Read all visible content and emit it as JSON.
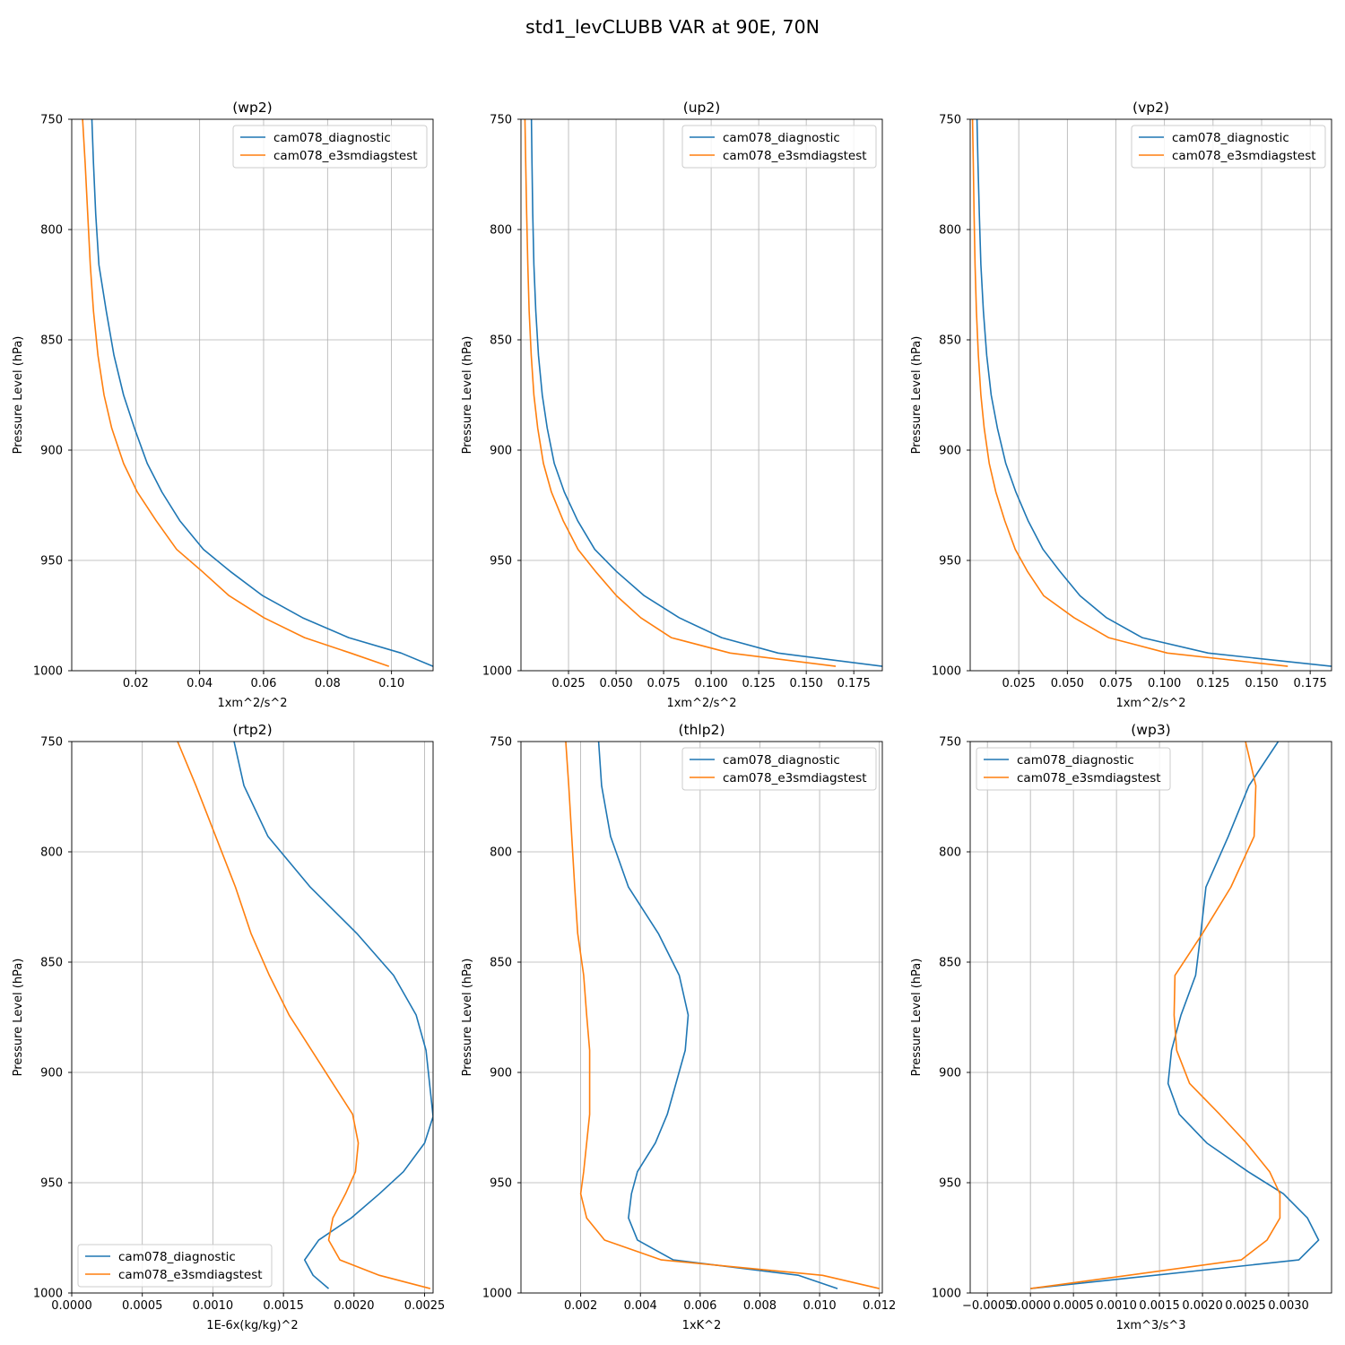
{
  "suptitle": "std1_levCLUBB VAR at 90E, 70N",
  "colors": {
    "diagnostic": "#1f77b4",
    "e3smdiagstest": "#ff7f0e",
    "grid": "#b0b0b0"
  },
  "chart_data": [
    {
      "type": "line",
      "title": "(wp2)",
      "xlabel": "1xm^2/s^2",
      "ylabel": "Pressure Level (hPa)",
      "xlim": [
        0.0,
        0.113
      ],
      "ylim": [
        1000,
        750
      ],
      "xticks": [
        0.02,
        0.04,
        0.06,
        0.08
      ],
      "xtick_labels": [
        "0.02",
        "0.04",
        "0.06",
        "0.08"
      ],
      "xticks_extra_label": "0.10",
      "xticks_extra": 0.1,
      "yticks": [
        750,
        800,
        850,
        900,
        950,
        1000
      ],
      "legend": "upper right",
      "series": [
        {
          "name": "cam078_diagnostic",
          "color": "diagnostic",
          "x": [
            0.0063,
            0.0068,
            0.0075,
            0.0085,
            0.0108,
            0.0132,
            0.0162,
            0.0196,
            0.0236,
            0.0282,
            0.0338,
            0.0412,
            0.0496,
            0.0597,
            0.0722,
            0.0866,
            0.103,
            0.113
          ],
          "y": [
            750,
            770,
            793,
            816,
            837,
            857,
            875,
            890,
            906,
            919,
            932,
            945,
            955,
            966,
            976,
            985,
            992,
            998
          ]
        },
        {
          "name": "cam078_e3smdiagstest",
          "color": "e3smdiagstest",
          "x": [
            0.0034,
            0.0042,
            0.005,
            0.0058,
            0.0068,
            0.0082,
            0.0101,
            0.0125,
            0.0162,
            0.0205,
            0.0264,
            0.0328,
            0.0408,
            0.0492,
            0.0601,
            0.0728,
            0.0872,
            0.0992
          ],
          "y": [
            750,
            770,
            793,
            816,
            837,
            857,
            875,
            890,
            906,
            919,
            932,
            945,
            955,
            966,
            976,
            985,
            992,
            998
          ]
        }
      ]
    },
    {
      "type": "line",
      "title": "(up2)",
      "xlabel": "1xm^2/s^2",
      "ylabel": "Pressure Level (hPa)",
      "xlim": [
        0.0,
        0.19
      ],
      "ylim": [
        1000,
        750
      ],
      "xticks": [
        0.025,
        0.05,
        0.075,
        0.1,
        0.125,
        0.15,
        0.175
      ],
      "xtick_labels": [
        "0.025",
        "0.050",
        "0.075",
        "0.100",
        "0.125",
        "0.150",
        "0.175"
      ],
      "yticks": [
        750,
        800,
        850,
        900,
        950,
        1000
      ],
      "legend": "upper right",
      "series": [
        {
          "name": "cam078_diagnostic",
          "color": "diagnostic",
          "x": [
            0.0055,
            0.0058,
            0.0062,
            0.0068,
            0.0078,
            0.0092,
            0.0112,
            0.0138,
            0.0175,
            0.0228,
            0.0298,
            0.0388,
            0.0502,
            0.0648,
            0.0832,
            0.1055,
            0.1352,
            0.19
          ],
          "y": [
            750,
            770,
            793,
            816,
            837,
            857,
            875,
            890,
            906,
            919,
            932,
            945,
            955,
            966,
            976,
            985,
            992,
            998
          ]
        },
        {
          "name": "cam078_e3smdiagstest",
          "color": "e3smdiagstest",
          "x": [
            0.0021,
            0.0025,
            0.003,
            0.0036,
            0.0043,
            0.0054,
            0.0068,
            0.0088,
            0.0118,
            0.016,
            0.0222,
            0.03,
            0.0392,
            0.0502,
            0.063,
            0.079,
            0.11,
            0.1655
          ],
          "y": [
            750,
            770,
            793,
            816,
            837,
            857,
            875,
            890,
            906,
            919,
            932,
            945,
            955,
            966,
            976,
            985,
            992,
            998
          ]
        }
      ]
    },
    {
      "type": "line",
      "title": "(vp2)",
      "xlabel": "1xm^2/s^2",
      "ylabel": "Pressure Level (hPa)",
      "xlim": [
        0.0,
        0.186
      ],
      "ylim": [
        1000,
        750
      ],
      "xticks": [
        0.025,
        0.05,
        0.075,
        0.1,
        0.125,
        0.15,
        0.175
      ],
      "xtick_labels": [
        "0.025",
        "0.050",
        "0.075",
        "0.100",
        "0.125",
        "0.150",
        "0.175"
      ],
      "yticks": [
        750,
        800,
        850,
        900,
        950,
        1000
      ],
      "legend": "upper right",
      "series": [
        {
          "name": "cam078_diagnostic",
          "color": "diagnostic",
          "x": [
            0.0035,
            0.004,
            0.0047,
            0.0055,
            0.0068,
            0.0085,
            0.0108,
            0.014,
            0.0183,
            0.0235,
            0.0298,
            0.0375,
            0.0462,
            0.0565,
            0.0702,
            0.0885,
            0.1225,
            0.186
          ],
          "y": [
            750,
            770,
            793,
            816,
            837,
            857,
            875,
            890,
            906,
            919,
            932,
            945,
            955,
            966,
            976,
            985,
            992,
            998
          ]
        },
        {
          "name": "cam078_e3smdiagstest",
          "color": "e3smdiagstest",
          "x": [
            0.0012,
            0.0016,
            0.002,
            0.0025,
            0.0032,
            0.0042,
            0.0055,
            0.0072,
            0.0098,
            0.0132,
            0.0178,
            0.0232,
            0.0295,
            0.0378,
            0.0535,
            0.0712,
            0.1015,
            0.1635
          ],
          "y": [
            750,
            770,
            793,
            816,
            837,
            857,
            875,
            890,
            906,
            919,
            932,
            945,
            955,
            966,
            976,
            985,
            992,
            998
          ]
        }
      ]
    },
    {
      "type": "line",
      "title": "(rtp2)",
      "xlabel": "1E-6x(kg/kg)^2",
      "ylabel": "Pressure Level (hPa)",
      "xlim": [
        0.0,
        0.00256
      ],
      "ylim": [
        1000,
        750
      ],
      "xticks": [
        0.0,
        0.0005,
        0.001,
        0.0015,
        0.002,
        0.0025
      ],
      "xtick_labels": [
        "0.0000",
        "0.0005",
        "0.0010",
        "0.0015",
        "0.0020",
        "0.0025"
      ],
      "yticks": [
        750,
        800,
        850,
        900,
        950,
        1000
      ],
      "legend": "lower left",
      "series": [
        {
          "name": "cam078_diagnostic",
          "color": "diagnostic",
          "x": [
            0.00115,
            0.00122,
            0.00139,
            0.00169,
            0.00202,
            0.00228,
            0.00244,
            0.00251,
            0.00256,
            0.0025,
            0.00235,
            0.00218,
            0.00198,
            0.00175,
            0.00165,
            0.00171,
            0.00182
          ],
          "y": [
            750,
            770,
            793,
            816,
            837,
            856,
            874,
            890,
            920,
            932,
            945,
            955,
            966,
            976,
            985,
            992,
            998
          ]
        },
        {
          "name": "cam078_e3smdiagstest",
          "color": "e3smdiagstest",
          "x": [
            0.00075,
            0.00088,
            0.00102,
            0.00116,
            0.00127,
            0.0014,
            0.00154,
            0.0017,
            0.00186,
            0.00199,
            0.00203,
            0.00201,
            0.00194,
            0.00185,
            0.00182,
            0.0019,
            0.00218,
            0.00254
          ],
          "y": [
            750,
            770,
            793,
            816,
            837,
            856,
            874,
            890,
            906,
            919,
            932,
            945,
            955,
            966,
            976,
            985,
            992,
            998
          ]
        }
      ]
    },
    {
      "type": "line",
      "title": "(thlp2)",
      "xlabel": "1xK^2",
      "ylabel": "Pressure Level (hPa)",
      "xlim": [
        0.0,
        0.0121
      ],
      "ylim": [
        1000,
        750
      ],
      "xticks": [
        0.002,
        0.004,
        0.006,
        0.008,
        0.01,
        0.012
      ],
      "xtick_labels": [
        "0.002",
        "0.004",
        "0.006",
        "0.008",
        "0.010",
        "0.012"
      ],
      "yticks": [
        750,
        800,
        850,
        900,
        950,
        1000
      ],
      "legend": "upper right",
      "series": [
        {
          "name": "cam078_diagnostic",
          "color": "diagnostic",
          "x": [
            0.0026,
            0.0027,
            0.003,
            0.0036,
            0.0046,
            0.0053,
            0.0056,
            0.0055,
            0.0049,
            0.0045,
            0.0039,
            0.0037,
            0.0036,
            0.0039,
            0.0051,
            0.0093,
            0.0106
          ],
          "y": [
            750,
            770,
            793,
            816,
            837,
            856,
            874,
            890,
            919,
            932,
            945,
            955,
            966,
            976,
            985,
            992,
            998
          ]
        },
        {
          "name": "cam078_e3smdiagstest",
          "color": "e3smdiagstest",
          "x": [
            0.0015,
            0.0016,
            0.0017,
            0.0018,
            0.0019,
            0.0021,
            0.0022,
            0.0023,
            0.0023,
            0.0023,
            0.0022,
            0.0021,
            0.002,
            0.0022,
            0.0028,
            0.0047,
            0.0101,
            0.012
          ],
          "y": [
            750,
            770,
            793,
            816,
            837,
            856,
            874,
            890,
            906,
            919,
            932,
            945,
            955,
            966,
            976,
            985,
            992,
            998
          ]
        }
      ]
    },
    {
      "type": "line",
      "title": "(wp3)",
      "xlabel": "1xm^3/s^3",
      "ylabel": "Pressure Level (hPa)",
      "xlim": [
        -0.0007,
        0.0035
      ],
      "ylim": [
        1000,
        750
      ],
      "xticks": [
        -0.0005,
        0.0,
        0.0005,
        0.001,
        0.0015,
        0.002,
        0.0025,
        0.003
      ],
      "xtick_labels": [
        "−0.0005",
        "0.0000",
        "0.0005",
        "0.0010",
        "0.0015",
        "0.0020",
        "0.0025",
        "0.0030"
      ],
      "yticks": [
        750,
        800,
        850,
        900,
        950,
        1000
      ],
      "legend": "upper left",
      "series": [
        {
          "name": "cam078_diagnostic",
          "color": "diagnostic",
          "x": [
            0.00288,
            0.00254,
            0.0023,
            0.00204,
            0.00198,
            0.00192,
            0.00175,
            0.00164,
            0.0016,
            0.00173,
            0.00205,
            0.00253,
            0.00294,
            0.00322,
            0.00335,
            0.00312,
            0.0
          ],
          "y": [
            750,
            770,
            793,
            816,
            837,
            856,
            874,
            890,
            905,
            919,
            932,
            945,
            955,
            966,
            976,
            985,
            998
          ]
        },
        {
          "name": "cam078_e3smdiagstest",
          "color": "e3smdiagstest",
          "x": [
            0.0025,
            0.00262,
            0.0026,
            0.00233,
            0.002,
            0.00168,
            0.00167,
            0.0017,
            0.00185,
            0.0022,
            0.00251,
            0.00278,
            0.0029,
            0.0029,
            0.00275,
            0.00245,
            0.0
          ],
          "y": [
            750,
            770,
            793,
            816,
            837,
            856,
            874,
            890,
            905,
            919,
            932,
            945,
            955,
            966,
            976,
            985,
            998
          ]
        }
      ]
    }
  ]
}
